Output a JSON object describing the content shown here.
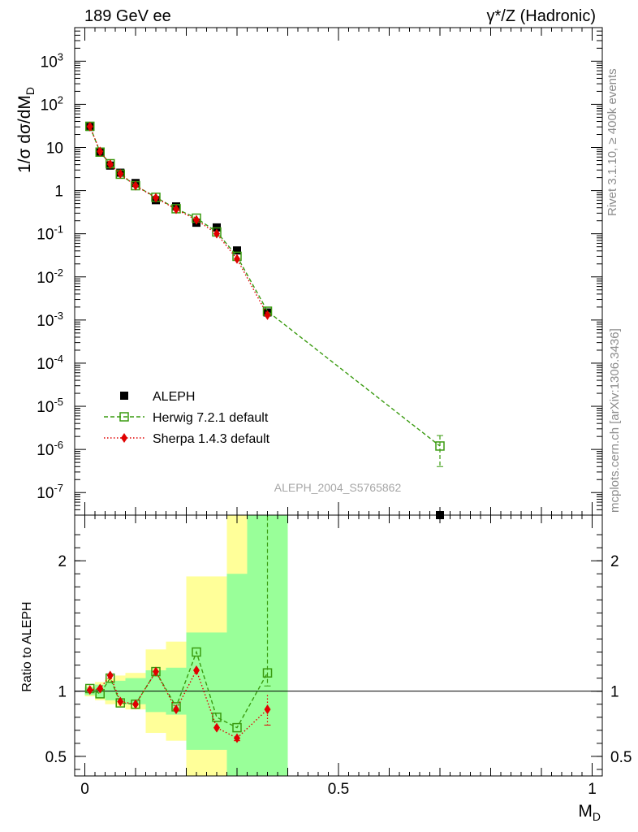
{
  "header": {
    "left": "189 GeV ee",
    "right": "γ*/Z (Hadronic)"
  },
  "side_labels": {
    "rivet": "Rivet 3.1.10, ≥ 400k events",
    "mcplots": "mcplots.cern.ch [arXiv:1306.3436]"
  },
  "watermark": "ALEPH_2004_S5765862",
  "chart_data": [
    {
      "type": "scatter",
      "panel": "main",
      "ylabel": "1/σ dσ/dM_D",
      "yscale": "log",
      "ylim": [
        3e-08,
        6000
      ],
      "yticks": [
        {
          "v": 1e-07,
          "label": "10^-7"
        },
        {
          "v": 1e-06,
          "label": "10^-6"
        },
        {
          "v": 1e-05,
          "label": "10^-5"
        },
        {
          "v": 0.0001,
          "label": "10^-4"
        },
        {
          "v": 0.001,
          "label": "10^-3"
        },
        {
          "v": 0.01,
          "label": "10^-2"
        },
        {
          "v": 0.1,
          "label": "10^-1"
        },
        {
          "v": 1,
          "label": "1"
        },
        {
          "v": 10,
          "label": "10"
        },
        {
          "v": 100,
          "label": "10^2"
        },
        {
          "v": 1000,
          "label": "10^3"
        }
      ],
      "legend_position": "bottom-left",
      "series": [
        {
          "name": "ALEPH",
          "color": "#000000",
          "marker": "square",
          "x": [
            0.01,
            0.03,
            0.05,
            0.07,
            0.1,
            0.14,
            0.18,
            0.22,
            0.26,
            0.3,
            0.36,
            0.7
          ],
          "y": [
            30,
            8.0,
            3.8,
            2.6,
            1.5,
            0.6,
            0.43,
            0.18,
            0.14,
            0.041,
            0.0015,
            3e-08
          ]
        },
        {
          "name": "Herwig 7.2.1 default",
          "color": "#3a9b10",
          "marker": "open-square",
          "line": "dashed",
          "x": [
            0.01,
            0.03,
            0.05,
            0.07,
            0.1,
            0.14,
            0.18,
            0.22,
            0.26,
            0.3,
            0.36,
            0.7
          ],
          "y": [
            31,
            7.8,
            4.2,
            2.4,
            1.3,
            0.7,
            0.38,
            0.23,
            0.11,
            0.03,
            0.0016,
            1.2e-06
          ],
          "yerr_low": [
            0,
            0,
            0,
            0,
            0,
            0,
            0,
            0,
            0,
            0,
            0,
            8e-07
          ],
          "yerr_high": [
            0,
            0,
            0,
            0,
            0,
            0,
            0,
            0,
            0,
            0,
            0,
            9e-07
          ]
        },
        {
          "name": "Sherpa 1.4.3 default",
          "color": "#e00000",
          "marker": "diamond",
          "line": "dotted",
          "x": [
            0.01,
            0.03,
            0.05,
            0.07,
            0.1,
            0.14,
            0.18,
            0.22,
            0.26,
            0.3,
            0.36
          ],
          "y": [
            30.5,
            8.1,
            4.1,
            2.45,
            1.3,
            0.68,
            0.37,
            0.21,
            0.1,
            0.026,
            0.0013
          ]
        }
      ]
    },
    {
      "type": "scatter",
      "panel": "ratio",
      "ylabel": "Ratio to ALEPH",
      "xlabel": "M_D",
      "ylim": [
        0.35,
        2.35
      ],
      "yticks": [
        0.5,
        1,
        2
      ],
      "xlim": [
        -0.02,
        1.02
      ],
      "xticks": [
        0,
        0.5,
        1
      ],
      "reference": 1,
      "bands": [
        {
          "x0": 0.0,
          "x1": 0.02,
          "inner": [
            0.97,
            1.03
          ],
          "outer": [
            0.96,
            1.04
          ]
        },
        {
          "x0": 0.02,
          "x1": 0.04,
          "inner": [
            0.95,
            1.05
          ],
          "outer": [
            0.93,
            1.07
          ]
        },
        {
          "x0": 0.04,
          "x1": 0.06,
          "inner": [
            0.93,
            1.07
          ],
          "outer": [
            0.9,
            1.1
          ]
        },
        {
          "x0": 0.06,
          "x1": 0.08,
          "inner": [
            0.92,
            1.08
          ],
          "outer": [
            0.88,
            1.12
          ]
        },
        {
          "x0": 0.08,
          "x1": 0.12,
          "inner": [
            0.9,
            1.1
          ],
          "outer": [
            0.86,
            1.14
          ]
        },
        {
          "x0": 0.12,
          "x1": 0.16,
          "inner": [
            0.84,
            1.16
          ],
          "outer": [
            0.68,
            1.32
          ]
        },
        {
          "x0": 0.16,
          "x1": 0.2,
          "inner": [
            0.82,
            1.18
          ],
          "outer": [
            0.62,
            1.38
          ]
        },
        {
          "x0": 0.2,
          "x1": 0.24,
          "inner": [
            0.55,
            1.45
          ],
          "outer": [
            0.3,
            1.88
          ]
        },
        {
          "x0": 0.24,
          "x1": 0.28,
          "inner": [
            0.55,
            1.45
          ],
          "outer": [
            0.3,
            1.88
          ]
        },
        {
          "x0": 0.28,
          "x1": 0.32,
          "inner": [
            0.3,
            1.9
          ],
          "outer": [
            0.3,
            2.4
          ]
        },
        {
          "x0": 0.32,
          "x1": 0.4,
          "inner": [
            0.3,
            2.4
          ],
          "outer": [
            0.3,
            2.4
          ]
        }
      ],
      "band_colors": {
        "inner": "#99ff99",
        "outer": "#ffff99"
      },
      "series": [
        {
          "name": "Herwig 7.2.1 default",
          "color": "#3a9b10",
          "marker": "open-square",
          "line": "dashed",
          "x": [
            0.01,
            0.03,
            0.05,
            0.07,
            0.1,
            0.14,
            0.18,
            0.22,
            0.26,
            0.3,
            0.36
          ],
          "y": [
            1.02,
            0.98,
            1.1,
            0.91,
            0.9,
            1.15,
            0.88,
            1.3,
            0.8,
            0.72,
            1.14
          ],
          "yerr_low": [
            0,
            0,
            0,
            0,
            0,
            0,
            0,
            0,
            0,
            0,
            0.1
          ],
          "yerr_high": [
            0,
            0,
            0,
            0,
            0,
            0,
            0,
            0,
            0,
            0,
            1.2
          ]
        },
        {
          "name": "Sherpa 1.4.3 default",
          "color": "#e00000",
          "marker": "diamond",
          "line": "dotted",
          "x": [
            0.01,
            0.03,
            0.05,
            0.07,
            0.1,
            0.14,
            0.18,
            0.22,
            0.26,
            0.3,
            0.36
          ],
          "y": [
            1.01,
            1.02,
            1.12,
            0.92,
            0.9,
            1.15,
            0.86,
            1.16,
            0.72,
            0.64,
            0.86
          ],
          "yerr_low": [
            0,
            0,
            0,
            0,
            0,
            0,
            0,
            0,
            0,
            0.02,
            0.12
          ],
          "yerr_high": [
            0,
            0,
            0,
            0,
            0,
            0,
            0,
            0,
            0,
            0.02,
            0.11
          ]
        }
      ]
    }
  ]
}
